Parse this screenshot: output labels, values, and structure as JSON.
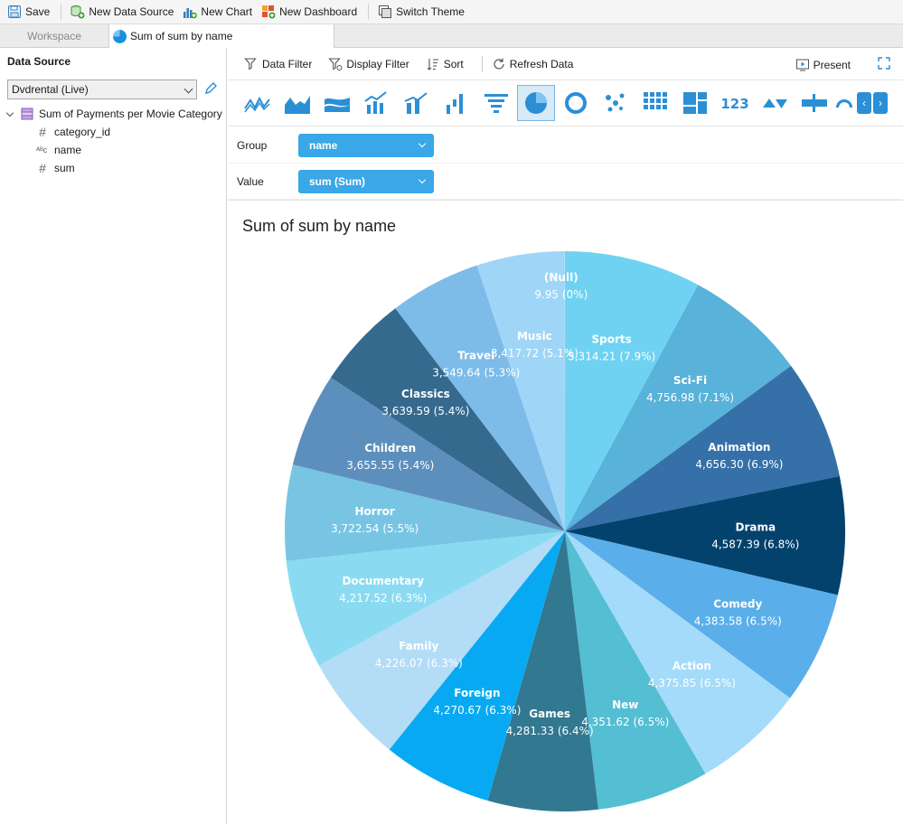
{
  "toolbar": {
    "save_label": "Save",
    "new_data_source_label": "New Data Source",
    "new_chart_label": "New Chart",
    "new_dashboard_label": "New Dashboard",
    "switch_theme_label": "Switch Theme"
  },
  "tabs": [
    {
      "label": "Workspace"
    },
    {
      "label": "Sum of sum by name"
    }
  ],
  "left": {
    "header": "Data Source",
    "datasource_value": "Dvdrental (Live)",
    "tree": {
      "table": "Sum of Payments per Movie Category",
      "fields": [
        {
          "name": "category_id",
          "type": "number"
        },
        {
          "name": "name",
          "type": "text"
        },
        {
          "name": "sum",
          "type": "number"
        }
      ]
    }
  },
  "right_toolbar": {
    "data_filter": "Data Filter",
    "display_filter": "Display Filter",
    "sort": "Sort",
    "refresh": "Refresh Data",
    "present": "Present"
  },
  "chart_types": [
    "line-icon",
    "area-icon",
    "stream-icon",
    "combo-icon",
    "bar-line-icon",
    "waterfall-icon",
    "funnel-icon",
    "pie-icon",
    "donut-icon",
    "scatter-icon",
    "grid-icon",
    "treemap-icon",
    "kpi-icon",
    "delta-icon",
    "bullet-icon",
    "gauge-icon"
  ],
  "fields": {
    "group_label": "Group",
    "group_value": "name",
    "value_label": "Value",
    "value_value": "sum (Sum)"
  },
  "chart_data": {
    "type": "pie",
    "title": "Sum of sum by name",
    "slices": [
      {
        "name": "Sports",
        "value": 5314.21,
        "label": "5,314.21 (7.9%)",
        "color": "#6fd2f2"
      },
      {
        "name": "Sci-Fi",
        "value": 4756.98,
        "label": "4,756.98 (7.1%)",
        "color": "#58b2d9"
      },
      {
        "name": "Animation",
        "value": 4656.3,
        "label": "4,656.30 (6.9%)",
        "color": "#3570a8"
      },
      {
        "name": "Drama",
        "value": 4587.39,
        "label": "4,587.39 (6.8%)",
        "color": "#04426e"
      },
      {
        "name": "Comedy",
        "value": 4383.58,
        "label": "4,383.58 (6.5%)",
        "color": "#5aaeea"
      },
      {
        "name": "Action",
        "value": 4375.85,
        "label": "4,375.85 (6.5%)",
        "color": "#a4dbfa"
      },
      {
        "name": "New",
        "value": 4351.62,
        "label": "4,351.62 (6.5%)",
        "color": "#54bed3"
      },
      {
        "name": "Games",
        "value": 4281.33,
        "label": "4,281.33 (6.4%)",
        "color": "#327890"
      },
      {
        "name": "Foreign",
        "value": 4270.67,
        "label": "4,270.67 (6.3%)",
        "color": "#07aaf2"
      },
      {
        "name": "Family",
        "value": 4226.07,
        "label": "4,226.07 (6.3%)",
        "color": "#b3dcf6"
      },
      {
        "name": "Documentary",
        "value": 4217.52,
        "label": "4,217.52 (6.3%)",
        "color": "#8adbf2"
      },
      {
        "name": "Horror",
        "value": 3722.54,
        "label": "3,722.54 (5.5%)",
        "color": "#78c5e3"
      },
      {
        "name": "Children",
        "value": 3655.55,
        "label": "3,655.55 (5.4%)",
        "color": "#5d8fbd"
      },
      {
        "name": "Classics",
        "value": 3639.59,
        "label": "3,639.59 (5.4%)",
        "color": "#356a8e"
      },
      {
        "name": "Travel",
        "value": 3549.64,
        "label": "3,549.64 (5.3%)",
        "color": "#7dbbe9"
      },
      {
        "name": "Music",
        "value": 3417.72,
        "label": "3,417.72 (5.1%)",
        "color": "#9fd6f7"
      },
      {
        "name": "(Null)",
        "value": 9.95,
        "label": "9.95 (0%)",
        "color": "#c2e3f8"
      }
    ]
  }
}
